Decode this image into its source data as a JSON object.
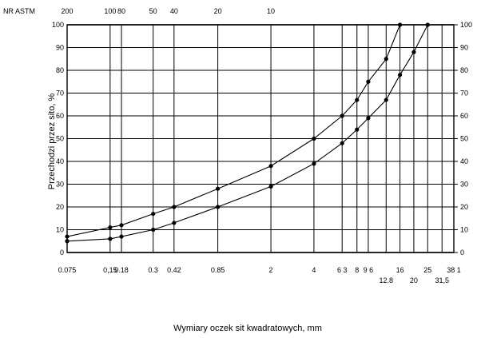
{
  "chart_data": {
    "type": "line",
    "x_scale": "log",
    "grid": true,
    "xlabel": "Wymiary oczek sit kwadratowych, mm",
    "ylabel": "Przechodzi przez sito, %",
    "ylim": [
      0,
      100
    ],
    "y_ticks": [
      "0",
      "10",
      "20",
      "30",
      "40",
      "50",
      "60",
      "70",
      "80",
      "90",
      "100"
    ],
    "y2_ticks": [
      "0",
      "10",
      "20",
      "30",
      "40",
      "50",
      "60",
      "70",
      "80",
      "90",
      "100"
    ],
    "top_axis_title": "NR ASTM",
    "top_ticks": [
      {
        "label": "200",
        "x": 0.075
      },
      {
        "label": "100",
        "x": 0.15
      },
      {
        "label": "80",
        "x": 0.18
      },
      {
        "label": "50",
        "x": 0.3
      },
      {
        "label": "40",
        "x": 0.42
      },
      {
        "label": "20",
        "x": 0.85
      },
      {
        "label": "10",
        "x": 2
      }
    ],
    "x_ticks": [
      {
        "label": "0.075",
        "x": 0.075
      },
      {
        "label": "0,15",
        "x": 0.15
      },
      {
        "label": "0.18",
        "x": 0.18
      },
      {
        "label": "0.3",
        "x": 0.3
      },
      {
        "label": "0.42",
        "x": 0.42
      },
      {
        "label": "0.85",
        "x": 0.85
      },
      {
        "label": "2",
        "x": 2
      },
      {
        "label": "4",
        "x": 4
      },
      {
        "label": "6 3",
        "x": 6.3
      },
      {
        "label": "8",
        "x": 8
      },
      {
        "label": "9 6",
        "x": 9.6
      },
      {
        "label": "16",
        "x": 16
      },
      {
        "label": "25",
        "x": 25
      },
      {
        "label": "38 1",
        "x": 38.1
      }
    ],
    "x_ticks_secondary": [
      {
        "label": "12.8",
        "x": 12.8
      },
      {
        "label": "20",
        "x": 20
      },
      {
        "label": "31,5",
        "x": 31.5
      }
    ],
    "series": [
      {
        "points": [
          {
            "x": 0.075,
            "y": 7
          },
          {
            "x": 0.15,
            "y": 11
          },
          {
            "x": 0.18,
            "y": 12
          },
          {
            "x": 0.3,
            "y": 17
          },
          {
            "x": 0.42,
            "y": 20
          },
          {
            "x": 0.85,
            "y": 28
          },
          {
            "x": 2,
            "y": 38
          },
          {
            "x": 4,
            "y": 50
          },
          {
            "x": 6.3,
            "y": 60
          },
          {
            "x": 8,
            "y": 67
          },
          {
            "x": 9.6,
            "y": 75
          },
          {
            "x": 12.8,
            "y": 85
          },
          {
            "x": 16,
            "y": 100
          }
        ]
      },
      {
        "points": [
          {
            "x": 0.075,
            "y": 5
          },
          {
            "x": 0.15,
            "y": 6
          },
          {
            "x": 0.18,
            "y": 7
          },
          {
            "x": 0.3,
            "y": 10
          },
          {
            "x": 0.42,
            "y": 13
          },
          {
            "x": 0.85,
            "y": 20
          },
          {
            "x": 2,
            "y": 29
          },
          {
            "x": 4,
            "y": 39
          },
          {
            "x": 6.3,
            "y": 48
          },
          {
            "x": 8,
            "y": 54
          },
          {
            "x": 9.6,
            "y": 59
          },
          {
            "x": 12.8,
            "y": 67
          },
          {
            "x": 16,
            "y": 78
          },
          {
            "x": 20,
            "y": 88
          },
          {
            "x": 25,
            "y": 100
          }
        ]
      }
    ]
  }
}
